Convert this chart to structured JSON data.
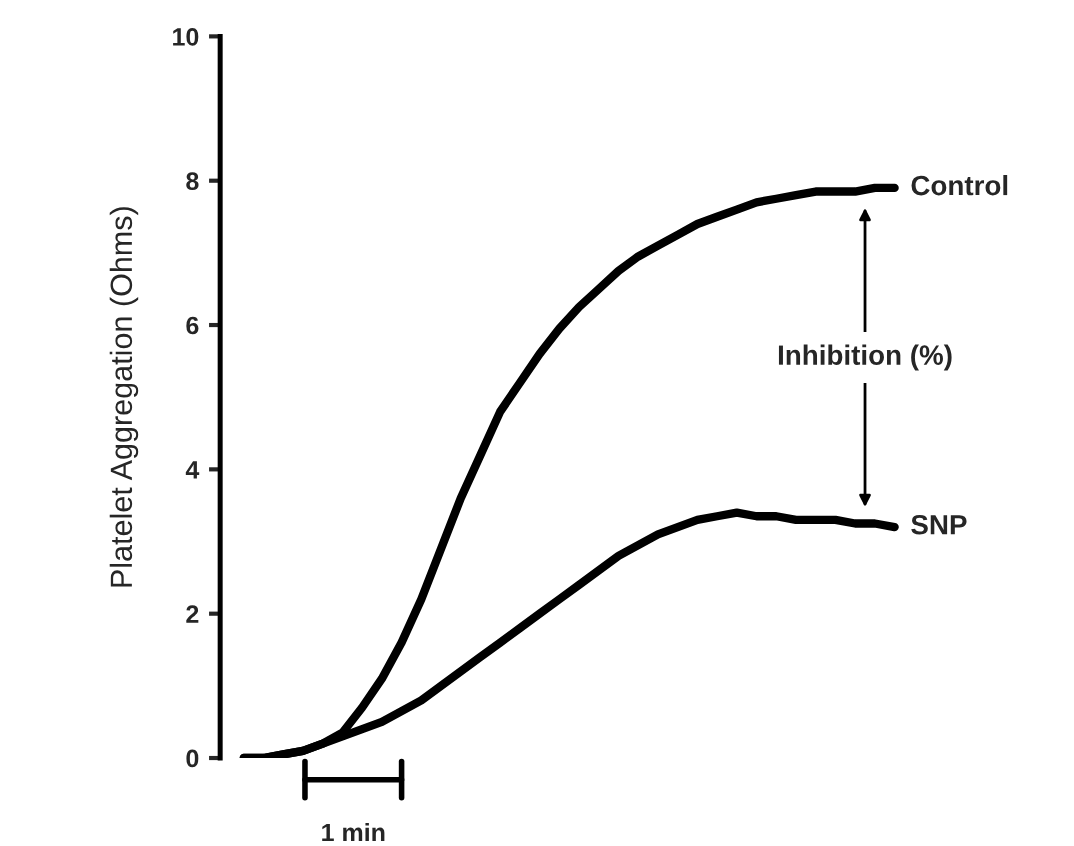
{
  "chart_data": {
    "type": "line",
    "ylabel": "Platelet Aggregation (Ohms)",
    "categories": [
      null,
      null,
      null,
      null,
      null,
      null,
      null,
      null,
      null,
      null,
      null,
      null,
      null,
      null,
      null,
      null,
      null,
      null,
      null,
      null,
      null,
      null,
      null,
      null,
      null,
      null,
      null,
      null,
      null,
      null,
      null,
      null,
      null,
      null
    ],
    "series": [
      {
        "name": "Control",
        "color": "#000000",
        "values": [
          0,
          0,
          0.05,
          0.1,
          0.2,
          0.35,
          0.7,
          1.1,
          1.6,
          2.2,
          2.9,
          3.6,
          4.2,
          4.8,
          5.2,
          5.6,
          5.95,
          6.25,
          6.5,
          6.75,
          6.95,
          7.1,
          7.25,
          7.4,
          7.5,
          7.6,
          7.7,
          7.75,
          7.8,
          7.85,
          7.85,
          7.85,
          7.9,
          7.9
        ]
      },
      {
        "name": "SNP",
        "color": "#000000",
        "values": [
          0,
          0,
          0.05,
          0.1,
          0.2,
          0.3,
          0.4,
          0.5,
          0.65,
          0.8,
          1.0,
          1.2,
          1.4,
          1.6,
          1.8,
          2.0,
          2.2,
          2.4,
          2.6,
          2.8,
          2.95,
          3.1,
          3.2,
          3.3,
          3.35,
          3.4,
          3.35,
          3.35,
          3.3,
          3.3,
          3.3,
          3.25,
          3.25,
          3.2
        ]
      }
    ],
    "ylim": [
      0,
      10
    ],
    "yticks": [
      0,
      2,
      4,
      6,
      8,
      10
    ],
    "annotations": [
      "Inhibition (%)",
      "1 min"
    ],
    "tick_labels": "y",
    "grid": false,
    "legend": false,
    "marker": "none",
    "line_style": "solid"
  }
}
